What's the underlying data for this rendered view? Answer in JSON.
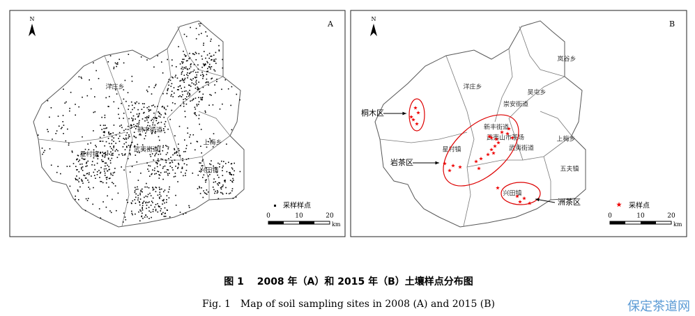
{
  "panels": [
    {
      "letter": "A",
      "north": "N",
      "place_labels": [
        "洋庄乡",
        "星村镇",
        "武夷街道",
        "新丰街道",
        "上梅乡",
        "兴田镇"
      ],
      "legend": "采样样点",
      "scale_labels": [
        0,
        10,
        20
      ],
      "scale_unit": "km"
    },
    {
      "letter": "B",
      "north": "N",
      "place_labels": [
        "洋庄乡",
        "岚谷乡",
        "吴屯乡",
        "崇安街道",
        "新丰街道",
        "武夷山市茶场",
        "武夷街道",
        "星村镇",
        "上梅乡",
        "五夫镇",
        "兴田镇"
      ],
      "annotations": [
        "桐木区",
        "岩茶区",
        "洲茶区"
      ],
      "legend": "采样点",
      "scale_labels": [
        0,
        10,
        20
      ],
      "scale_unit": "km"
    }
  ],
  "caption": {
    "title": "图 1　 2008 年（A）和 2015 年（B）土壤样点分布图",
    "english": "Fig. 1　Map of soil sampling sites in 2008 (A) and 2015 (B)"
  },
  "watermark": "保定茶道网"
}
